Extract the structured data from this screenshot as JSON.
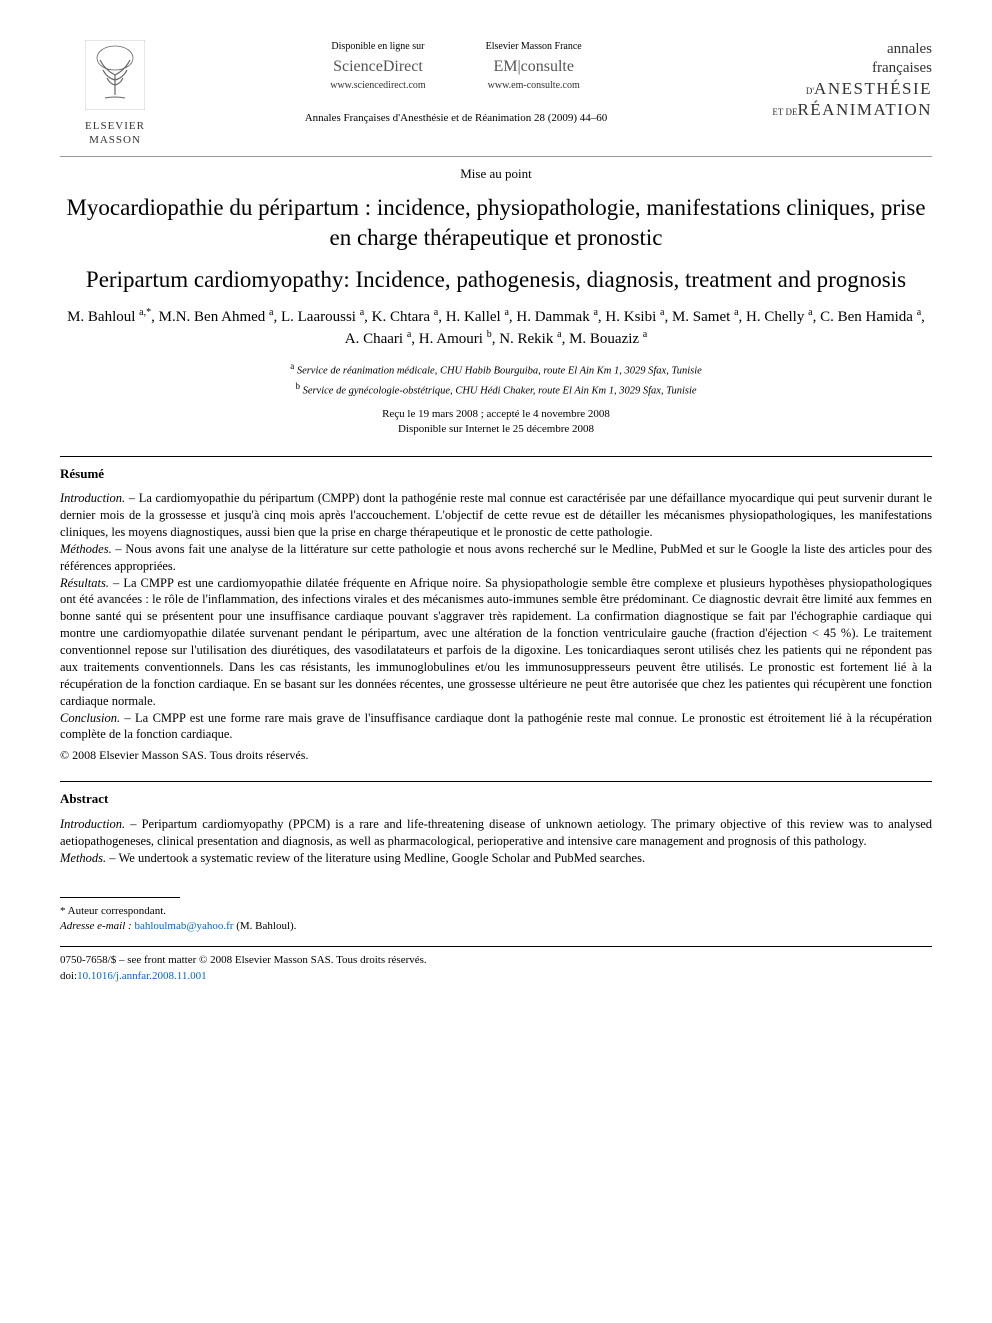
{
  "header": {
    "publisher_name": "ELSEVIER MASSON",
    "sciencedirect": {
      "avail": "Disponible en ligne sur",
      "brand": "ScienceDirect",
      "url": "www.sciencedirect.com"
    },
    "emconsulte": {
      "avail": "Elsevier Masson France",
      "brand": "EM|consulte",
      "url": "www.em-consulte.com"
    },
    "journal_block": {
      "line1": "annales",
      "line2": "françaises",
      "line3_small": "D'",
      "line3_big": "ANESTHÉSIE",
      "line4_small": "ET DE",
      "line4_big": "RÉANIMATION"
    },
    "citation": "Annales Françaises d'Anesthésie et de Réanimation 28 (2009) 44–60"
  },
  "article_type": "Mise au point",
  "title_fr": "Myocardiopathie du péripartum : incidence, physiopathologie, manifestations cliniques, prise en charge thérapeutique et pronostic",
  "title_en": "Peripartum cardiomyopathy: Incidence, pathogenesis, diagnosis, treatment and prognosis",
  "authors_html": "M. Bahloul <sup>a,*</sup>, M.N. Ben Ahmed <sup>a</sup>, L. Laaroussi <sup>a</sup>, K. Chtara <sup>a</sup>, H. Kallel <sup>a</sup>, H. Dammak <sup>a</sup>, H. Ksibi <sup>a</sup>, M. Samet <sup>a</sup>, H. Chelly <sup>a</sup>, C. Ben Hamida <sup>a</sup>, A. Chaari <sup>a</sup>, H. Amouri <sup>b</sup>, N. Rekik <sup>a</sup>, M. Bouaziz <sup>a</sup>",
  "affiliations": {
    "a": "Service de réanimation médicale, CHU Habib Bourguiba, route El Ain Km 1, 3029 Sfax, Tunisie",
    "b": "Service de gynécologie-obstétrique, CHU Hédi Chaker, route El Ain Km 1, 3029 Sfax, Tunisie"
  },
  "dates": {
    "received": "Reçu le 19 mars 2008 ; accepté le 4 novembre 2008",
    "online": "Disponible sur Internet le 25 décembre 2008"
  },
  "resume": {
    "heading": "Résumé",
    "introduction_label": "Introduction. –",
    "introduction": "La cardiomyopathie du péripartum (CMPP) dont la pathogénie reste mal connue est caractérisée par une défaillance myocardique qui peut survenir durant le dernier mois de la grossesse et jusqu'à cinq mois après l'accouchement. L'objectif de cette revue est de détailler les mécanismes physiopathologiques, les manifestations cliniques, les moyens diagnostiques, aussi bien que la prise en charge thérapeutique et le pronostic de cette pathologie.",
    "methodes_label": "Méthodes. –",
    "methodes": "Nous avons fait une analyse de la littérature sur cette pathologie et nous avons recherché sur le Medline, PubMed et sur le Google la liste des articles pour des références appropriées.",
    "resultats_label": "Résultats. –",
    "resultats": "La CMPP est une cardiomyopathie dilatée fréquente en Afrique noire. Sa physiopathologie semble être complexe et plusieurs hypothèses physiopathologiques ont été avancées : le rôle de l'inflammation, des infections virales et des mécanismes auto-immunes semble être prédominant. Ce diagnostic devrait être limité aux femmes en bonne santé qui se présentent pour une insuffisance cardiaque pouvant s'aggraver très rapidement. La confirmation diagnostique se fait par l'échographie cardiaque qui montre une cardiomyopathie dilatée survenant pendant le péripartum, avec une altération de la fonction ventriculaire gauche (fraction d'éjection < 45 %). Le traitement conventionnel repose sur l'utilisation des diurétiques, des vasodilatateurs et parfois de la digoxine. Les tonicardiaques seront utilisés chez les patients qui ne répondent pas aux traitements conventionnels. Dans les cas résistants, les immunoglobulines et/ou les immunosuppresseurs peuvent être utilisés. Le pronostic est fortement lié à la récupération de la fonction cardiaque. En se basant sur les données récentes, une grossesse ultérieure ne peut être autorisée que chez les patientes qui récupèrent une fonction cardiaque normale.",
    "conclusion_label": "Conclusion. –",
    "conclusion": "La CMPP est une forme rare mais grave de l'insuffisance cardiaque dont la pathogénie reste mal connue. Le pronostic est étroitement lié à la récupération complète de la fonction cardiaque.",
    "copyright": "© 2008 Elsevier Masson SAS. Tous droits réservés."
  },
  "abstract": {
    "heading": "Abstract",
    "introduction_label": "Introduction. –",
    "introduction": "Peripartum cardiomyopathy (PPCM) is a rare and life-threatening disease of unknown aetiology. The primary objective of this review was to analysed aetiopathogeneses, clinical presentation and diagnosis, as well as pharmacological, perioperative and intensive care management and prognosis of this pathology.",
    "methods_label": "Methods. –",
    "methods": "We undertook a systematic review of the literature using Medline, Google Scholar and PubMed searches."
  },
  "footnote": {
    "corresp": "* Auteur correspondant.",
    "email_label": "Adresse e-mail :",
    "email": "bahloulmab@yahoo.fr",
    "email_name": "(M. Bahloul)."
  },
  "footer": {
    "issn": "0750-7658/$ – see front matter © 2008 Elsevier Masson SAS. Tous droits réservés.",
    "doi_prefix": "doi:",
    "doi": "10.1016/j.annfar.2008.11.001"
  },
  "colors": {
    "text": "#000000",
    "link": "#0066cc",
    "rule": "#000000",
    "background": "#ffffff"
  },
  "typography": {
    "body_fontsize": 13,
    "title_fontsize": 23,
    "author_fontsize": 15,
    "abstract_fontsize": 12.5,
    "footnote_fontsize": 11
  }
}
